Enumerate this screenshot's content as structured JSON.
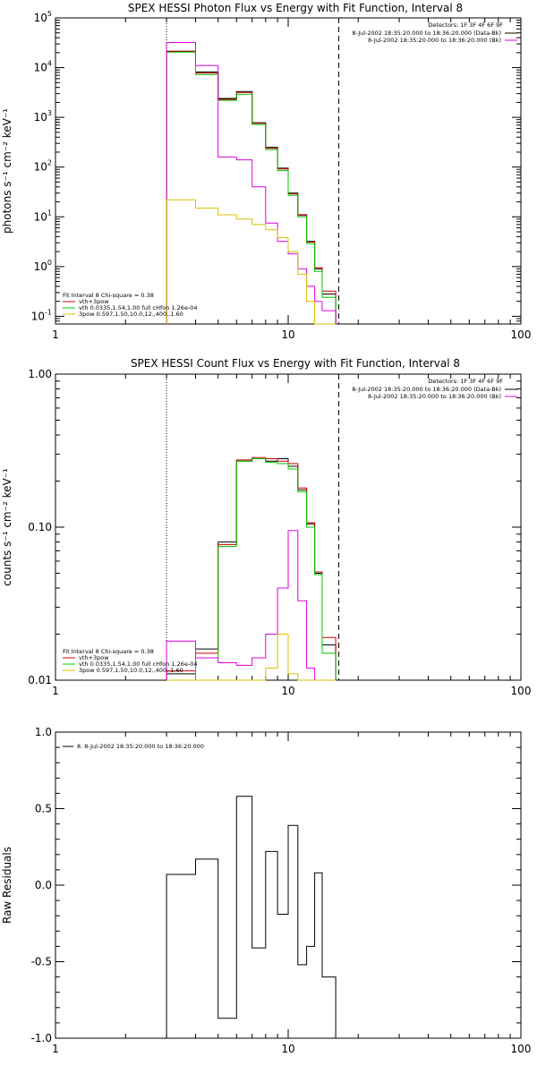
{
  "chart_data": [
    {
      "type": "line",
      "subtype": "step",
      "title": "SPEX HESSI Photon Flux vs Energy with Fit Function, Interval 8",
      "xlabel": "",
      "ylabel": "photons s⁻¹ cm⁻² keV⁻¹",
      "xscale": "log",
      "yscale": "log",
      "xlim": [
        1,
        100
      ],
      "ylim": [
        0.07,
        100000
      ],
      "x_ticks": [
        "1",
        "10",
        "100"
      ],
      "y_ticks": [
        {
          "value": 100000,
          "base": "10",
          "exp": "5"
        },
        {
          "value": 10000,
          "base": "10",
          "exp": "4"
        },
        {
          "value": 1000,
          "base": "10",
          "exp": "3"
        },
        {
          "value": 100,
          "base": "10",
          "exp": "2"
        },
        {
          "value": 10,
          "base": "10",
          "exp": "1"
        },
        {
          "value": 1,
          "base": "10",
          "exp": "0"
        },
        {
          "value": 0.1,
          "base": "10",
          "exp": "-1"
        }
      ],
      "bin_edges": [
        3,
        4,
        5,
        6,
        7,
        8,
        9,
        10,
        11,
        12,
        13,
        14,
        16
      ],
      "vlines": [
        {
          "x": 3,
          "style": "dotted"
        },
        {
          "x": 16.5,
          "style": "dashed"
        }
      ],
      "series": [
        {
          "color": "#000000",
          "values": [
            21000,
            8200,
            2400,
            3300,
            780,
            250,
            95,
            30,
            11,
            3.2,
            0.9,
            0.28
          ]
        },
        {
          "color": "#cc0000",
          "values": [
            21500,
            7800,
            2300,
            3150,
            760,
            240,
            92,
            29,
            10.7,
            3.1,
            0.95,
            0.32
          ]
        },
        {
          "color": "#00c800",
          "values": [
            20500,
            7300,
            2200,
            2900,
            720,
            225,
            85,
            27,
            10,
            2.9,
            0.8,
            0.24
          ]
        },
        {
          "color": "#e000e0",
          "values": [
            32000,
            11000,
            160,
            140,
            40,
            7.5,
            3.2,
            1.8,
            0.9,
            0.4,
            0.2,
            0.13
          ]
        },
        {
          "color": "#d8c000",
          "values": [
            22,
            15,
            11,
            9,
            7,
            5.5,
            3.8,
            2,
            0.7,
            0.2,
            0.06,
            0.06
          ]
        }
      ],
      "header_legend": {
        "detectors": "Detectors: 1F 3F 4F 6F 9F",
        "entries": [
          {
            "text": "8-Jul-2002 18:35:20.000 to 18:36:20.000 (Data-Bk)",
            "color": "#000000"
          },
          {
            "text": "8-Jul-2002 18:35:20.000 to 18:36:20.000 (Bk)",
            "color": "#e000e0"
          }
        ]
      },
      "fit_legend": {
        "title": "Fit Interval 8   Chi-square = 0.38",
        "entries": [
          {
            "text": "vth+3pow",
            "color": "#cc0000"
          },
          {
            "text": "vth 0.0335,1.54,1.00  full cHfon 1.26e-04",
            "color": "#00c800"
          },
          {
            "text": "3pow 0.597,1.50,10.0,12.,400.,1.60",
            "color": "#d8c000"
          }
        ]
      }
    },
    {
      "type": "line",
      "subtype": "step",
      "title": "SPEX HESSI Count Flux vs Energy with Fit Function, Interval 8",
      "xlabel": "",
      "ylabel": "counts s⁻¹ cm⁻² keV⁻¹",
      "xscale": "log",
      "yscale": "log",
      "xlim": [
        1,
        100
      ],
      "ylim": [
        0.01,
        1.0
      ],
      "x_ticks": [
        "1",
        "10",
        "100"
      ],
      "y_ticks": [
        {
          "value": 1.0,
          "label": "1.00"
        },
        {
          "value": 0.1,
          "label": "0.10"
        },
        {
          "value": 0.01,
          "label": "0.01"
        }
      ],
      "bin_edges": [
        3,
        4,
        5,
        6,
        7,
        8,
        9,
        10,
        11,
        12,
        13,
        14,
        16
      ],
      "vlines": [
        {
          "x": 3,
          "style": "dotted"
        },
        {
          "x": 16.5,
          "style": "dashed"
        }
      ],
      "series": [
        {
          "color": "#000000",
          "values": [
            0.011,
            0.016,
            0.08,
            0.27,
            0.28,
            0.27,
            0.28,
            0.25,
            0.175,
            0.105,
            0.05,
            0.017
          ]
        },
        {
          "color": "#cc0000",
          "values": [
            0.0115,
            0.015,
            0.077,
            0.275,
            0.285,
            0.28,
            0.27,
            0.26,
            0.18,
            0.107,
            0.051,
            0.019
          ]
        },
        {
          "color": "#00c800",
          "values": [
            0.01,
            0.014,
            0.075,
            0.27,
            0.28,
            0.265,
            0.26,
            0.24,
            0.17,
            0.1,
            0.049,
            0.015
          ]
        },
        {
          "color": "#e000e0",
          "values": [
            0.018,
            0.014,
            0.013,
            0.0125,
            0.014,
            0.02,
            0.04,
            0.095,
            0.033,
            0.012,
            0.008,
            0.008
          ]
        },
        {
          "color": "#d8c000",
          "values": [
            0.008,
            0.008,
            0.008,
            0.008,
            0.008,
            0.012,
            0.02,
            0.011,
            0.008,
            0.008,
            0.008,
            0.008
          ]
        }
      ],
      "header_legend": {
        "detectors": "Detectors: 1F 3F 4F 6F 9F",
        "entries": [
          {
            "text": "8-Jul-2002 18:35:20.000 to 18:36:20.000 (Data-Bk)",
            "color": "#000000"
          },
          {
            "text": "8-Jul-2002 18:35:20.000 to 18:36:20.000 (Bk)",
            "color": "#e000e0"
          }
        ]
      },
      "fit_legend": {
        "title": "Fit Interval 8   Chi-square = 0.38",
        "entries": [
          {
            "text": "vth+3pow",
            "color": "#cc0000"
          },
          {
            "text": "vth 0.0335,1.54,1.00  full cHfon 1.26e-04",
            "color": "#00c800"
          },
          {
            "text": "3pow 0.597,1.50,10.0,12.,400.,1.60",
            "color": "#d8c000"
          }
        ]
      }
    },
    {
      "type": "line",
      "subtype": "step",
      "title": "",
      "xlabel": "",
      "ylabel": "Raw Residuals",
      "xscale": "log",
      "yscale": "linear",
      "xlim": [
        1,
        100
      ],
      "ylim": [
        -1.0,
        1.0
      ],
      "x_ticks": [
        "1",
        "10",
        "100"
      ],
      "y_ticks": [
        {
          "value": 1.0,
          "label": "1.0"
        },
        {
          "value": 0.5,
          "label": "0.5"
        },
        {
          "value": 0.0,
          "label": "0.0"
        },
        {
          "value": -0.5,
          "label": "-0.5"
        },
        {
          "value": -1.0,
          "label": "-1.0"
        }
      ],
      "bin_edges": [
        3,
        4,
        5,
        6,
        7,
        8,
        9,
        10,
        11,
        12,
        13,
        14,
        16
      ],
      "series": [
        {
          "color": "#000000",
          "values": [
            0.07,
            0.17,
            -0.87,
            0.58,
            -0.41,
            0.22,
            -0.19,
            0.39,
            -0.52,
            -0.4,
            0.08,
            -0.6
          ]
        }
      ],
      "legend": {
        "entries": [
          {
            "text": "8.  8-Jul-2002 18:35:20.000 to 18:36:20.000",
            "color": "#000000"
          }
        ]
      }
    }
  ]
}
